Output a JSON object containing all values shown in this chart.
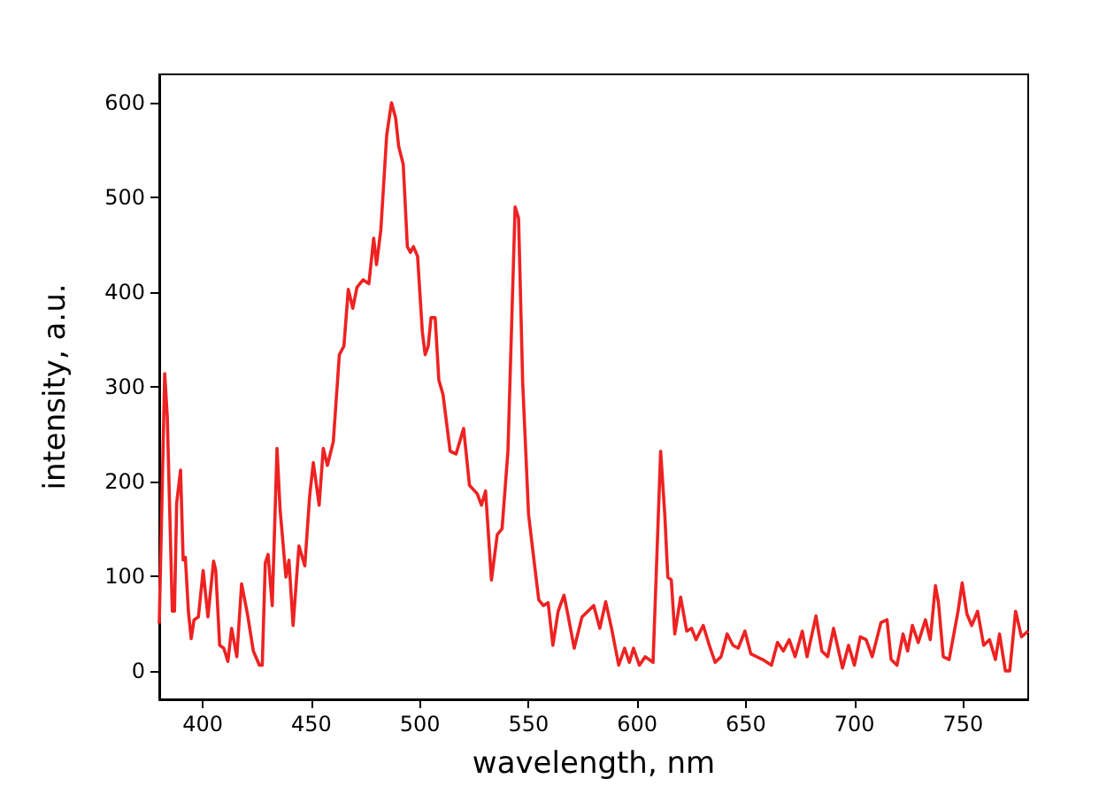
{
  "chart_data": {
    "type": "line",
    "xlabel": "wavelength, nm",
    "ylabel": "intensity, a.u.",
    "x": [
      380,
      382.5,
      383.7,
      386,
      387,
      388,
      389.8,
      391,
      392,
      393.4,
      394.7,
      396,
      398,
      400.2,
      402.4,
      405,
      406,
      407.8,
      409.7,
      411.6,
      413.3,
      415.7,
      417.9,
      420.6,
      423.3,
      426.1,
      427.4,
      428.8,
      430.1,
      432,
      434.2,
      435.6,
      438.3,
      439.7,
      441.6,
      444.3,
      447,
      449.2,
      450.9,
      453.6,
      455.5,
      457.4,
      460.1,
      462.9,
      465,
      467,
      469.1,
      471,
      473.8,
      476.5,
      478.7,
      480,
      482,
      484.7,
      486.9,
      488.8,
      490.2,
      492.3,
      494.2,
      495.6,
      497,
      498.9,
      501.1,
      502.4,
      503.8,
      505.1,
      507,
      508.7,
      510.6,
      513.9,
      516.6,
      520.1,
      522.8,
      526.4,
      528.3,
      530.2,
      532.9,
      535.6,
      537.8,
      540.5,
      543.8,
      545.4,
      547.3,
      550,
      552.8,
      554.7,
      556.8,
      559,
      561.2,
      563.6,
      566.3,
      568.3,
      571,
      574.6,
      577.3,
      580,
      582.8,
      585.5,
      588.2,
      591.5,
      594.2,
      596.4,
      598.3,
      601,
      603.7,
      607.3,
      610.8,
      612.7,
      614.1,
      615.7,
      617.3,
      620,
      622.8,
      625,
      627.1,
      630.4,
      633.2,
      635.9,
      638.6,
      641.4,
      644.1,
      646.5,
      649.6,
      652.3,
      655,
      657.7,
      661.8,
      664.6,
      667.3,
      670,
      672.7,
      676,
      678.2,
      682.3,
      685,
      687.7,
      690.4,
      694.5,
      697.3,
      700,
      702.7,
      705.4,
      708.2,
      712.2,
      715,
      716.9,
      719.6,
      722.4,
      724.5,
      726.7,
      729.4,
      732.7,
      734.9,
      737.3,
      738.7,
      740.9,
      743.6,
      747.7,
      749.6,
      751.8,
      754,
      756.7,
      759.5,
      762.2,
      764.9,
      766.8,
      769.5,
      771.5,
      774.2,
      776.9,
      780
    ],
    "series": [
      {
        "color": "#ee2222",
        "values": [
          50,
          314,
          268,
          63,
          63,
          177,
          212,
          117,
          120,
          63,
          34,
          54,
          57,
          106,
          57,
          116,
          106,
          27,
          24,
          10,
          45,
          15,
          92,
          60,
          21,
          6,
          6,
          114,
          123,
          69,
          235,
          171,
          99,
          117,
          48,
          132,
          111,
          184,
          220,
          175,
          235,
          217,
          242,
          334,
          343,
          403,
          383,
          405,
          413,
          409,
          457,
          429,
          466,
          566,
          600,
          584,
          554,
          535,
          448,
          442,
          448,
          438,
          358,
          334,
          343,
          373,
          373,
          307,
          292,
          232,
          229,
          256,
          196,
          187,
          175,
          190,
          96,
          144,
          150,
          232,
          490,
          478,
          304,
          165,
          111,
          75,
          69,
          72,
          27,
          63,
          80,
          57,
          24,
          57,
          63,
          69,
          45,
          73,
          45,
          6,
          24,
          9,
          24,
          6,
          15,
          9,
          232,
          165,
          99,
          96,
          39,
          78,
          42,
          45,
          33,
          48,
          27,
          9,
          15,
          39,
          27,
          24,
          42,
          18,
          15,
          12,
          6,
          30,
          21,
          33,
          15,
          42,
          15,
          58,
          21,
          15,
          45,
          3,
          27,
          6,
          36,
          33,
          15,
          51,
          54,
          12,
          6,
          39,
          21,
          48,
          30,
          54,
          33,
          90,
          72,
          15,
          12,
          63,
          93,
          60,
          48,
          63,
          27,
          33,
          12,
          39,
          0,
          0,
          63,
          36,
          42
        ]
      }
    ],
    "xlim": [
      380,
      780
    ],
    "ylim": [
      -30,
      630
    ],
    "xticks": [
      400,
      450,
      500,
      550,
      600,
      650,
      700,
      750
    ],
    "yticks": [
      0,
      100,
      200,
      300,
      400,
      500,
      600
    ],
    "marker": "none",
    "line_style": "solid"
  }
}
